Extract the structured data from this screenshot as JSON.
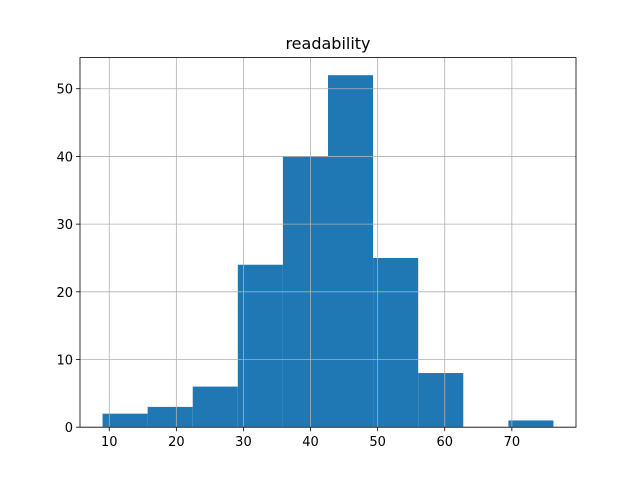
{
  "chart_data": {
    "type": "histogram",
    "title": "readability",
    "bins": [
      9,
      15.72,
      22.44,
      29.16,
      35.88,
      42.6,
      49.32,
      56.04,
      62.76,
      69.48,
      76.2
    ],
    "values": [
      2,
      3,
      6,
      24,
      40,
      52,
      25,
      8,
      0,
      1
    ],
    "color": "#1f77b4",
    "xlim": [
      5.64,
      79.56
    ],
    "xticks": [
      10,
      20,
      30,
      40,
      50,
      60,
      70
    ],
    "ylim": [
      0,
      54.6
    ],
    "yticks": [
      0,
      10,
      20,
      30,
      40,
      50
    ],
    "grid": true
  }
}
